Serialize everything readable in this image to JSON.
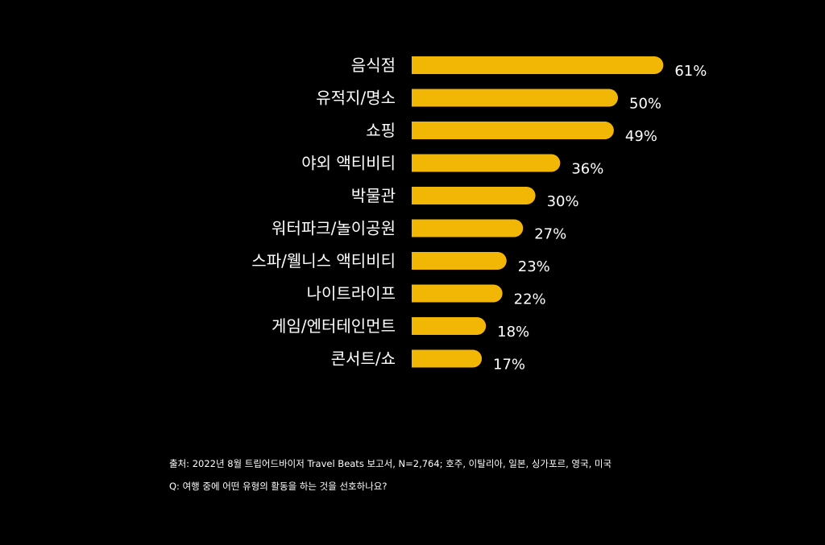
{
  "colors": {
    "bar": "#F2B705",
    "background": "#000000",
    "text": "#FFFFFF"
  },
  "chart_data": {
    "type": "bar",
    "orientation": "horizontal",
    "categories": [
      "음식점",
      "유적지/명소",
      "쇼핑",
      "야외 액티비티",
      "박물관",
      "워터파크/놀이공원",
      "스파/웰니스 액티비티",
      "나이트라이프",
      "게임/엔터테인먼트",
      "콘서트/쇼"
    ],
    "values": [
      61,
      50,
      49,
      36,
      30,
      27,
      23,
      22,
      18,
      17
    ],
    "value_labels": [
      "61%",
      "50%",
      "49%",
      "36%",
      "30%",
      "27%",
      "23%",
      "22%",
      "18%",
      "17%"
    ],
    "unit": "%",
    "title": "",
    "xlabel": "",
    "ylabel": "",
    "grid": false
  },
  "footer": {
    "source": "출처: 2022년 8월 트립어드바이저 Travel Beats 보고서, N=2,764; 호주, 이탈리아, 일본, 싱가포르, 영국, 미국",
    "question": "Q: 여행 중에 어떤 유형의 활동을 하는 것을 선호하나요?"
  }
}
